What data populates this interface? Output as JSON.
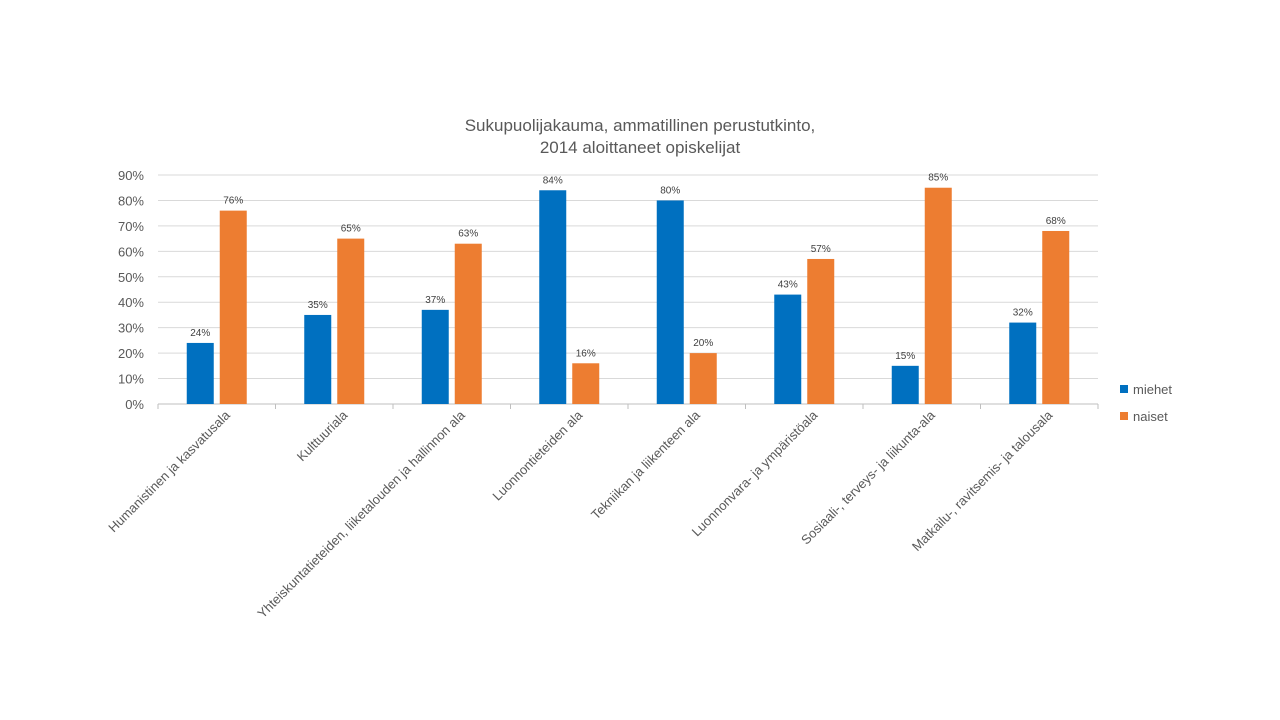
{
  "chart_data": {
    "type": "bar",
    "title": "Sukupuolijakauma, ammatillinen perustutkinto,",
    "subtitle": "2014 aloittaneet opiskelijat",
    "categories": [
      "Humanistinen ja kasvatusala",
      "Kulttuuriala",
      "Yhteiskuntatieteiden, liiketalouden ja hallinnon ala",
      "Luonnontieteiden ala",
      "Tekniikan ja liikenteen ala",
      "Luonnonvara- ja ympäristöala",
      "Sosiaali-, terveys- ja liikunta-ala",
      "Matkailu-, ravitsemis- ja talousala"
    ],
    "series": [
      {
        "name": "miehet",
        "color": "#0070C0",
        "values": [
          24,
          35,
          37,
          84,
          80,
          43,
          15,
          32
        ]
      },
      {
        "name": "naiset",
        "color": "#ED7D31",
        "values": [
          76,
          65,
          63,
          16,
          20,
          57,
          85,
          68
        ]
      }
    ],
    "value_format": "percent",
    "ylim": [
      0,
      90
    ],
    "yticks": [
      0,
      10,
      20,
      30,
      40,
      50,
      60,
      70,
      80,
      90
    ],
    "ytick_labels": [
      "0%",
      "10%",
      "20%",
      "30%",
      "40%",
      "50%",
      "60%",
      "70%",
      "80%",
      "90%"
    ],
    "grid": true,
    "legend_position": "right",
    "xlabel": "",
    "ylabel": ""
  }
}
